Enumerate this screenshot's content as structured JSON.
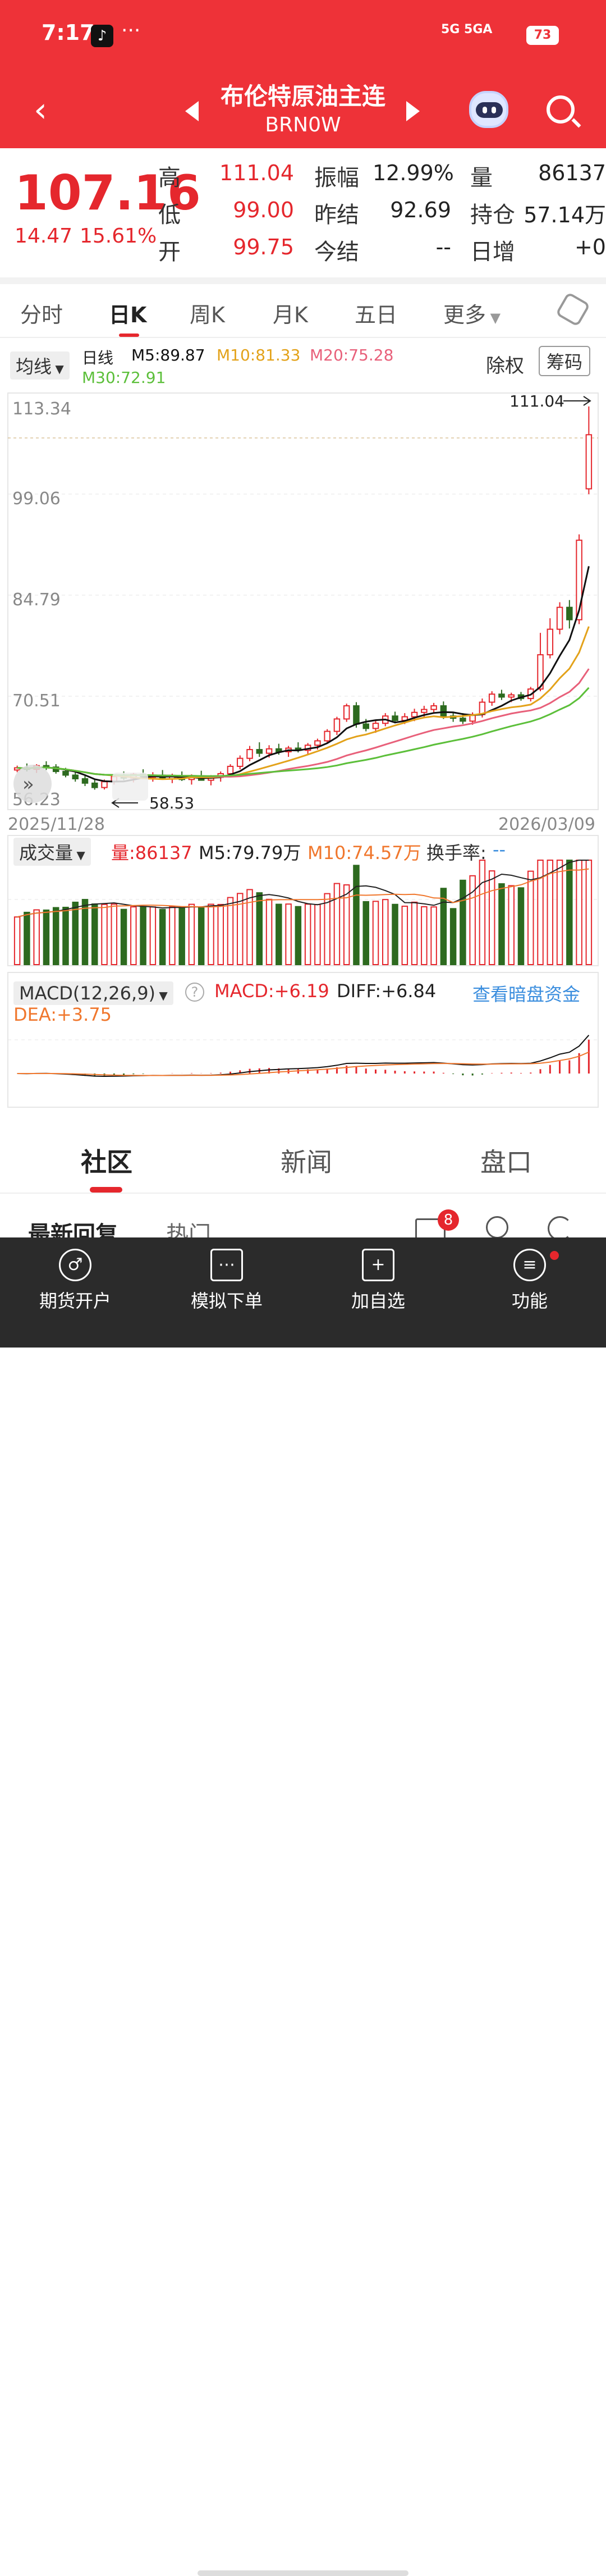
{
  "status_bar": {
    "time": "7:17",
    "net": "5G 5GA",
    "battery": "73"
  },
  "header": {
    "title": "布伦特原油主连",
    "code": "BRN0W"
  },
  "quote": {
    "last": "107.16",
    "change": "14.47",
    "change_pct": "15.61%",
    "rows": [
      {
        "l1": "高",
        "v1": "111.04",
        "l2": "振幅",
        "v2": "12.99%",
        "l3": "量",
        "v3": "86137"
      },
      {
        "l1": "低",
        "v1": "99.00",
        "l2": "昨结",
        "v2": "92.69",
        "l3": "持仓",
        "v3": "57.14万"
      },
      {
        "l1": "开",
        "v1": "99.75",
        "l2": "今结",
        "v2": "--",
        "l3": "日增",
        "v3": "+0"
      }
    ]
  },
  "tabs": [
    "分时",
    "日K",
    "周K",
    "月K",
    "五日",
    "更多"
  ],
  "kline_legend": {
    "selector": "均线",
    "period": "日线",
    "m5": "M5:89.87",
    "m10": "M10:81.33",
    "m20": "M20:75.28",
    "m30": "M30:72.91",
    "adjust_btn": "除权",
    "chips_btn": "筹码"
  },
  "kline_axis": {
    "y_labels": [
      "113.34",
      "99.06",
      "84.79",
      "70.51",
      "56.23"
    ],
    "start_date": "2025/11/28",
    "end_date": "2026/03/09",
    "high_mark": "111.04",
    "low_mark": "58.53"
  },
  "volume_legend": {
    "selector": "成交量",
    "vol": "量:86137",
    "m5": "M5:79.79万",
    "m10": "M10:74.57万",
    "turnover": "换手率:",
    "turnover_val": "--"
  },
  "macd_legend": {
    "selector": "MACD(12,26,9)",
    "macd": "MACD:+6.19",
    "diff": "DIFF:+6.84",
    "dea": "DEA:+3.75",
    "link": "查看暗盘资金"
  },
  "bottom_tabs": [
    "社区",
    "新闻",
    "盘口"
  ],
  "filters": {
    "latest": "最新回复",
    "hot": "热门",
    "msg_badge": "8"
  },
  "nav": [
    "期货开户",
    "模拟下单",
    "加自选",
    "功能"
  ],
  "colors": {
    "up": "#e5272d",
    "down": "#2d6a1f",
    "m5": "#111111",
    "m10": "#e3a21a",
    "m20": "#e8607a",
    "m30": "#5cbf3a"
  },
  "chart_data": {
    "type": "candlestick",
    "x_range": [
      "2025/11/28",
      "2026/03/09"
    ],
    "ylim": [
      56.23,
      113.34
    ],
    "candles": [
      [
        61.2,
        61.8,
        60.9,
        61.5
      ],
      [
        61.5,
        62.1,
        61.0,
        61.3
      ],
      [
        61.3,
        62.0,
        60.8,
        61.8
      ],
      [
        61.8,
        62.4,
        61.2,
        61.6
      ],
      [
        61.6,
        62.0,
        60.7,
        61.0
      ],
      [
        61.0,
        61.5,
        60.2,
        60.5
      ],
      [
        60.5,
        61.1,
        59.6,
        60.0
      ],
      [
        60.0,
        60.6,
        59.0,
        59.4
      ],
      [
        59.4,
        59.9,
        58.5,
        58.8
      ],
      [
        58.8,
        59.9,
        58.53,
        59.6
      ],
      [
        59.6,
        60.6,
        59.2,
        60.3
      ],
      [
        60.3,
        61.0,
        59.8,
        60.1
      ],
      [
        60.1,
        60.8,
        59.5,
        60.6
      ],
      [
        60.6,
        61.3,
        60.0,
        60.2
      ],
      [
        60.2,
        60.9,
        59.6,
        60.5
      ],
      [
        60.5,
        61.2,
        60.0,
        60.0
      ],
      [
        60.0,
        60.7,
        59.4,
        60.3
      ],
      [
        60.3,
        61.0,
        59.7,
        59.9
      ],
      [
        59.9,
        60.6,
        59.2,
        60.4
      ],
      [
        60.4,
        61.1,
        59.8,
        59.8
      ],
      [
        59.8,
        60.5,
        59.1,
        60.2
      ],
      [
        60.2,
        61.0,
        59.6,
        60.7
      ],
      [
        60.7,
        62.0,
        60.3,
        61.7
      ],
      [
        61.7,
        63.2,
        61.3,
        62.8
      ],
      [
        62.8,
        64.5,
        62.4,
        64.0
      ],
      [
        64.0,
        65.0,
        63.0,
        63.5
      ],
      [
        63.5,
        64.6,
        62.9,
        64.1
      ],
      [
        64.1,
        64.8,
        63.3,
        63.7
      ],
      [
        63.7,
        64.5,
        63.0,
        64.2
      ],
      [
        64.2,
        65.0,
        63.6,
        63.9
      ],
      [
        63.9,
        64.9,
        63.4,
        64.6
      ],
      [
        64.6,
        65.5,
        64.0,
        65.2
      ],
      [
        65.2,
        66.8,
        64.8,
        66.5
      ],
      [
        66.5,
        68.5,
        66.0,
        68.2
      ],
      [
        68.2,
        70.3,
        67.8,
        70.0
      ],
      [
        70.0,
        70.5,
        67.0,
        67.5
      ],
      [
        67.5,
        68.2,
        66.5,
        66.9
      ],
      [
        66.9,
        68.0,
        66.3,
        67.6
      ],
      [
        67.6,
        69.0,
        67.2,
        68.6
      ],
      [
        68.6,
        69.2,
        67.6,
        68.0
      ],
      [
        68.0,
        69.0,
        67.5,
        68.5
      ],
      [
        68.5,
        69.6,
        67.9,
        69.1
      ],
      [
        69.1,
        70.0,
        68.5,
        69.5
      ],
      [
        69.5,
        70.4,
        68.9,
        70.0
      ],
      [
        70.0,
        70.6,
        68.2,
        68.6
      ],
      [
        68.6,
        69.2,
        67.8,
        68.3
      ],
      [
        68.3,
        69.0,
        67.5,
        67.9
      ],
      [
        67.9,
        69.1,
        67.4,
        68.8
      ],
      [
        68.8,
        71.0,
        68.4,
        70.5
      ],
      [
        70.5,
        72.0,
        70.0,
        71.6
      ],
      [
        71.6,
        72.2,
        70.8,
        71.2
      ],
      [
        71.2,
        71.8,
        70.5,
        71.5
      ],
      [
        71.5,
        71.9,
        70.7,
        71.0
      ],
      [
        71.0,
        72.6,
        70.6,
        72.3
      ],
      [
        72.3,
        80.0,
        72.0,
        77.0
      ],
      [
        77.0,
        82.0,
        76.5,
        80.5
      ],
      [
        80.5,
        84.2,
        79.8,
        83.5
      ],
      [
        83.5,
        84.5,
        80.6,
        81.8
      ],
      [
        81.8,
        93.5,
        81.2,
        92.7
      ],
      [
        99.75,
        111.04,
        99.0,
        107.16
      ]
    ],
    "ma": {
      "M5": 89.87,
      "M10": 81.33,
      "M20": 75.28,
      "M30": 72.91
    },
    "volume": {
      "last": 86137,
      "M5": "79.79万",
      "M10": "74.57万"
    },
    "macd": {
      "MACD": 6.19,
      "DIFF": 6.84,
      "DEA": 3.75
    }
  }
}
